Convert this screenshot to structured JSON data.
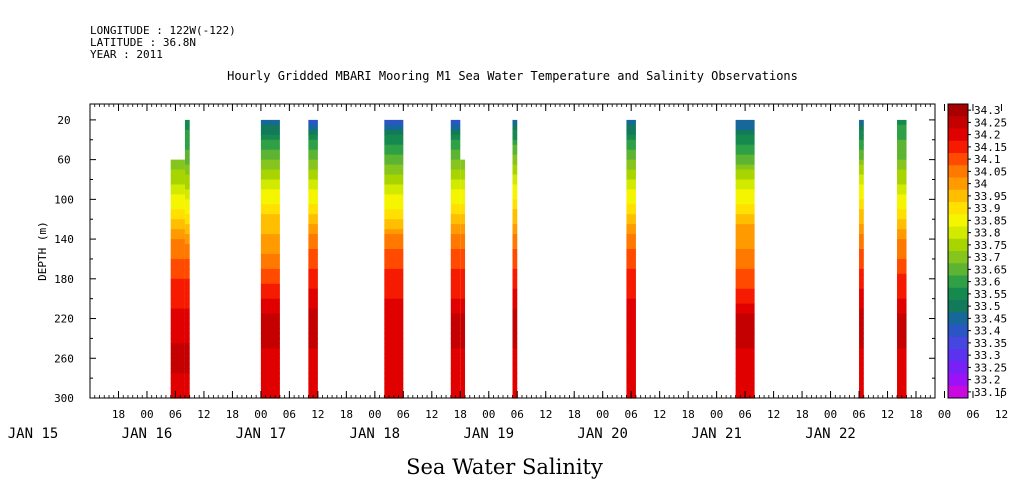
{
  "meta": {
    "longitude": "LONGITUDE : 122W(-122)",
    "latitude": "LATITUDE : 36.8N",
    "year": "YEAR : 2011"
  },
  "chart_data": {
    "type": "heatmap",
    "title": "Hourly Gridded MBARI Mooring M1 Sea Water Temperature and Salinity Observations",
    "bottom_title": "Sea Water Salinity",
    "ylabel": "DEPTH (m)",
    "ylim": [
      300,
      4
    ],
    "y_ticks": [
      20,
      60,
      100,
      140,
      180,
      220,
      260,
      300
    ],
    "x_hour_ticks": [
      "18",
      "00",
      "06",
      "12",
      "18",
      "00",
      "06",
      "12",
      "18",
      "00",
      "06",
      "12",
      "18",
      "00",
      "06",
      "12",
      "18",
      "00",
      "06",
      "12",
      "18",
      "00",
      "06",
      "12",
      "18",
      "00",
      "06",
      "12",
      "18",
      "00",
      "06",
      "12"
    ],
    "x_day_labels": [
      "JAN 15",
      "JAN 16",
      "JAN 17",
      "JAN 18",
      "JAN 19",
      "JAN 20",
      "JAN 21",
      "JAN 22"
    ],
    "colorbar": {
      "levels": [
        "34.3",
        "34.25",
        "34.2",
        "34.15",
        "34.1",
        "34.05",
        "34",
        "33.95",
        "33.9",
        "33.85",
        "33.8",
        "33.75",
        "33.7",
        "33.65",
        "33.6",
        "33.55",
        "33.5",
        "33.45",
        "33.4",
        "33.35",
        "33.3",
        "33.25",
        "33.2",
        "33.15"
      ],
      "colors": [
        "#a80000",
        "#c40000",
        "#e00000",
        "#f51a00",
        "#ff4a00",
        "#ff7800",
        "#ff9a00",
        "#ffbe00",
        "#ffe000",
        "#f5f500",
        "#d2ea00",
        "#a8d400",
        "#86c41e",
        "#5db432",
        "#2fa046",
        "#168a4e",
        "#127a5a",
        "#16679a",
        "#2a55c4",
        "#4646e0",
        "#5a32f0",
        "#7820f5",
        "#9a12f5",
        "#c80ae0"
      ]
    },
    "observation_windows": [
      {
        "start_hour": 29,
        "end_hour": 32,
        "top_depth": 60,
        "profile": [
          33.58,
          33.62,
          33.68,
          33.76,
          33.84,
          33.92,
          34.02,
          34.08,
          34.12,
          34.16,
          34.2,
          34.24,
          34.2
        ]
      },
      {
        "start_hour": 32,
        "end_hour": 33,
        "top_depth": 20,
        "profile": [
          33.55,
          33.6,
          33.66,
          33.74,
          33.82,
          33.9,
          34.0,
          34.08,
          34.12,
          34.16,
          34.2,
          34.24,
          34.2
        ]
      },
      {
        "start_hour": 48,
        "end_hour": 52,
        "top_depth": 20,
        "profile": [
          33.42,
          33.58,
          33.68,
          33.78,
          33.86,
          33.95,
          33.98,
          34.04,
          34.1,
          34.18,
          34.24,
          34.22,
          34.2
        ]
      },
      {
        "start_hour": 58,
        "end_hour": 60,
        "top_depth": 20,
        "profile": [
          33.4,
          33.58,
          33.68,
          33.78,
          33.86,
          33.94,
          34.04,
          34.1,
          34.15,
          34.2,
          34.24,
          34.22,
          34.2
        ]
      },
      {
        "start_hour": 74,
        "end_hour": 78,
        "top_depth": 20,
        "profile": [
          33.36,
          33.56,
          33.66,
          33.76,
          33.84,
          33.92,
          34.04,
          34.1,
          34.14,
          34.18,
          34.22,
          34.2,
          34.2
        ]
      },
      {
        "start_hour": 88,
        "end_hour": 90,
        "top_depth": 20,
        "profile": [
          33.4,
          33.58,
          33.68,
          33.78,
          33.86,
          33.94,
          34.04,
          34.1,
          34.14,
          34.18,
          34.24,
          34.22,
          34.2
        ]
      },
      {
        "start_hour": 90,
        "end_hour": 91,
        "top_depth": 60,
        "profile": [
          33.6,
          33.62,
          33.68,
          33.78,
          33.86,
          33.94,
          34.04,
          34.1,
          34.14,
          34.18,
          34.24,
          34.22,
          34.2
        ]
      },
      {
        "start_hour": 101,
        "end_hour": 102,
        "top_depth": 20,
        "profile": [
          33.44,
          33.58,
          33.7,
          33.8,
          33.88,
          33.96,
          34.04,
          34.1,
          34.14,
          34.2,
          34.24,
          34.22,
          34.2
        ]
      },
      {
        "start_hour": 125,
        "end_hour": 127,
        "top_depth": 20,
        "profile": [
          33.42,
          33.58,
          33.68,
          33.78,
          33.86,
          33.94,
          34.04,
          34.1,
          34.14,
          34.18,
          34.22,
          34.2,
          34.2
        ]
      },
      {
        "start_hour": 148,
        "end_hour": 152,
        "top_depth": 20,
        "profile": [
          33.42,
          33.56,
          33.66,
          33.78,
          33.86,
          33.96,
          34.0,
          34.04,
          34.1,
          34.16,
          34.24,
          34.22,
          34.2
        ]
      },
      {
        "start_hour": 174,
        "end_hour": 175,
        "top_depth": 20,
        "profile": [
          33.44,
          33.58,
          33.68,
          33.8,
          33.88,
          33.96,
          34.04,
          34.1,
          34.14,
          34.2,
          34.24,
          34.22,
          34.2
        ]
      },
      {
        "start_hour": 182,
        "end_hour": 184,
        "top_depth": 20,
        "profile": [
          33.56,
          33.62,
          33.68,
          33.76,
          33.84,
          33.92,
          34.02,
          34.08,
          34.14,
          34.18,
          34.24,
          34.22,
          34.2
        ]
      }
    ]
  }
}
